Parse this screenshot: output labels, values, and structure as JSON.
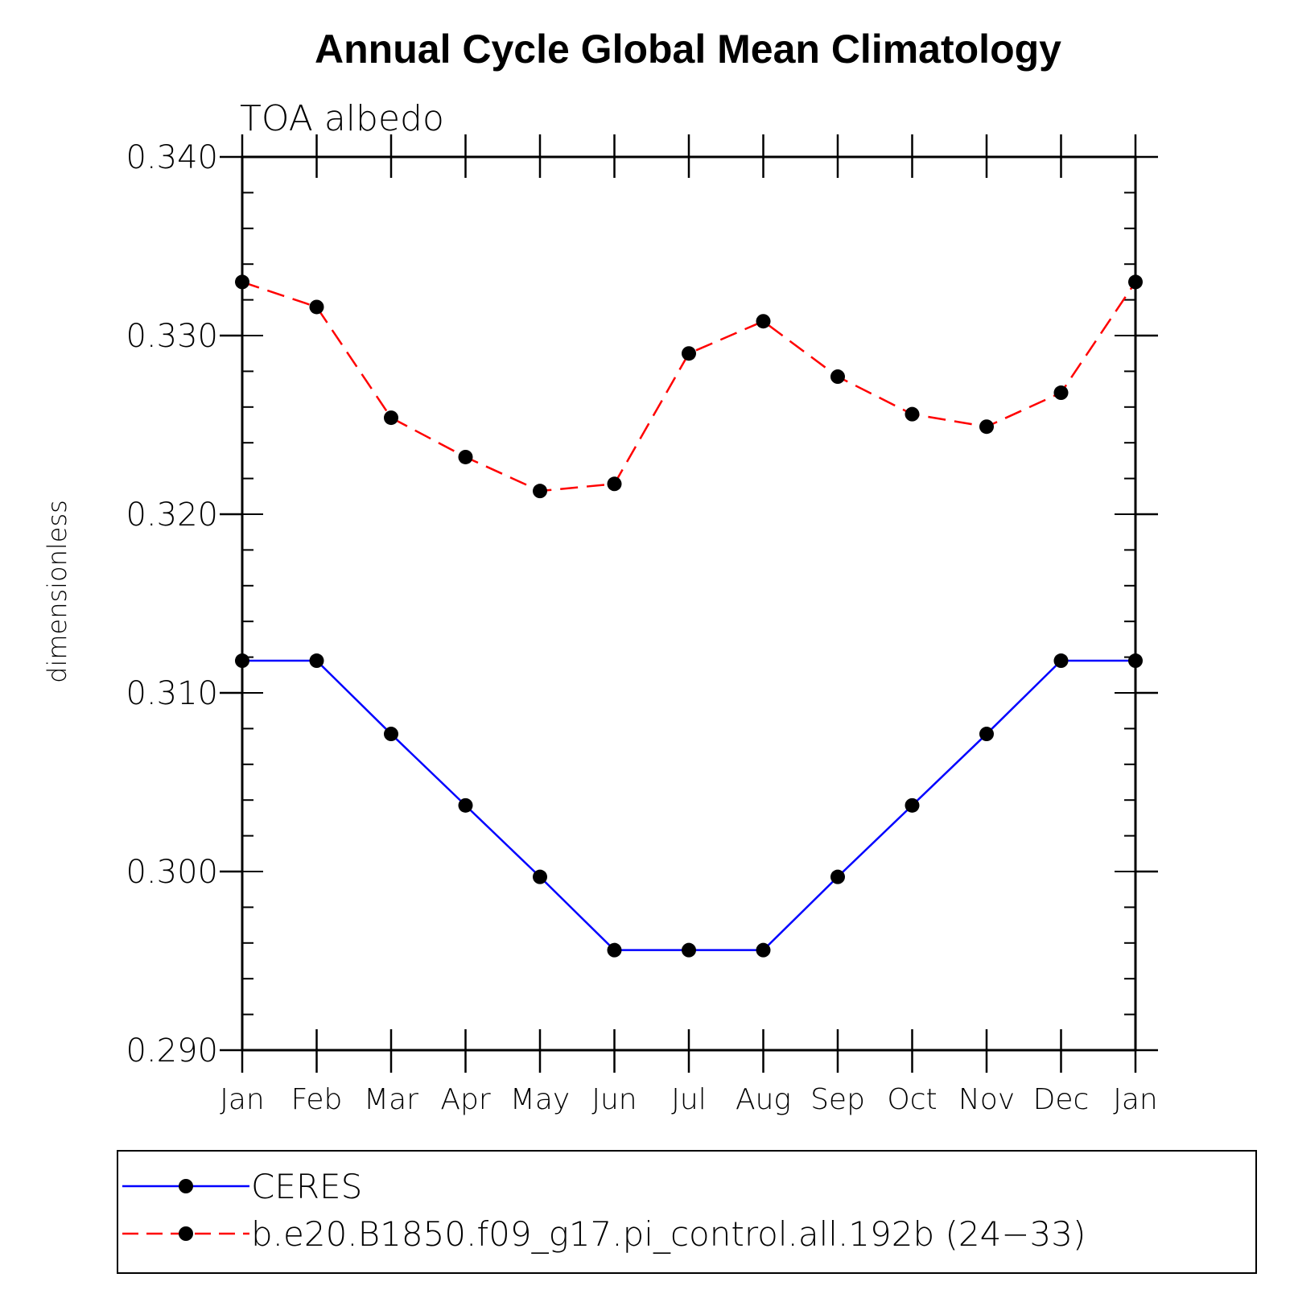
{
  "chart_data": {
    "type": "line",
    "title": "Annual Cycle Global Mean Climatology",
    "subtitle": "TOA albedo",
    "xlabel": "",
    "ylabel": "dimensionless",
    "categories": [
      "Jan",
      "Feb",
      "Mar",
      "Apr",
      "May",
      "Jun",
      "Jul",
      "Aug",
      "Sep",
      "Oct",
      "Nov",
      "Dec",
      "Jan"
    ],
    "y_ticks": [
      "0.290",
      "0.300",
      "0.310",
      "0.320",
      "0.330",
      "0.340"
    ],
    "ylim": [
      0.29,
      0.34
    ],
    "grid": false,
    "legend_position": "bottom",
    "series": [
      {
        "name": "CERES",
        "color": "#0000ff",
        "line_style": "solid",
        "marker": "filled-circle",
        "values": [
          0.3118,
          0.3118,
          0.3077,
          0.3037,
          0.2997,
          0.2956,
          0.2956,
          0.2956,
          0.2997,
          0.3037,
          0.3077,
          0.3118,
          0.3118
        ]
      },
      {
        "name": "b.e20.B1850.f09_g17.pi_control.all.192b (24−33)",
        "color": "#ff0000",
        "line_style": "dashed",
        "marker": "filled-circle",
        "values": [
          0.333,
          0.3316,
          0.3254,
          0.3232,
          0.3213,
          0.3217,
          0.329,
          0.3308,
          0.3277,
          0.3256,
          0.3249,
          0.3268,
          0.333
        ]
      }
    ]
  }
}
